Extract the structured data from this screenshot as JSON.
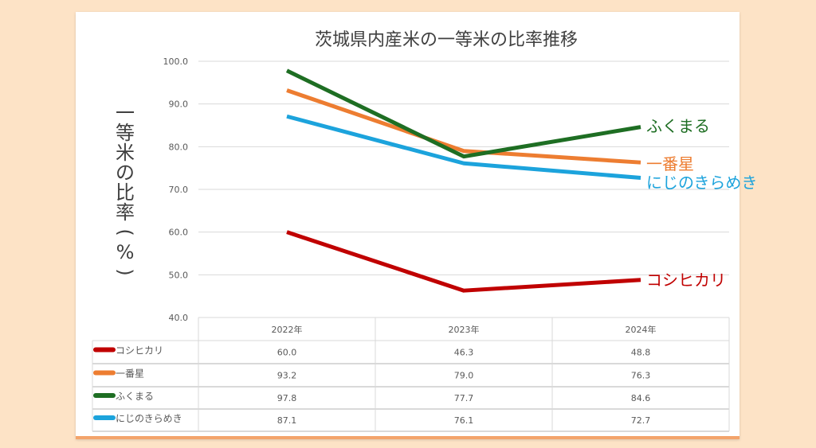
{
  "chart_data": {
    "type": "line",
    "title": "茨城県内産米の一等米の比率推移",
    "ylabel": "一等米の比率(%)",
    "xlabel": "",
    "ylim": [
      40,
      100
    ],
    "yticks": [
      "40.0",
      "50.0",
      "60.0",
      "70.0",
      "80.0",
      "90.0",
      "100.0"
    ],
    "grid": true,
    "categories": [
      "2022年",
      "2023年",
      "2024年"
    ],
    "series": [
      {
        "name": "コシヒカリ",
        "color": "#c00000",
        "values": [
          60.0,
          46.3,
          48.8
        ],
        "labels": [
          "60.0",
          "46.3",
          "48.8"
        ]
      },
      {
        "name": "一番星",
        "color": "#ed7d31",
        "values": [
          93.2,
          79.0,
          76.3
        ],
        "labels": [
          "93.2",
          "79.0",
          "76.3"
        ]
      },
      {
        "name": "ふくまる",
        "color": "#1e6e23",
        "values": [
          97.8,
          77.7,
          84.6
        ],
        "labels": [
          "97.8",
          "77.7",
          "84.6"
        ]
      },
      {
        "name": "にじのきらめき",
        "color": "#1ca3dc",
        "values": [
          87.1,
          76.1,
          72.7
        ],
        "labels": [
          "87.1",
          "76.1",
          "72.7"
        ]
      }
    ],
    "legend": "data-table"
  }
}
